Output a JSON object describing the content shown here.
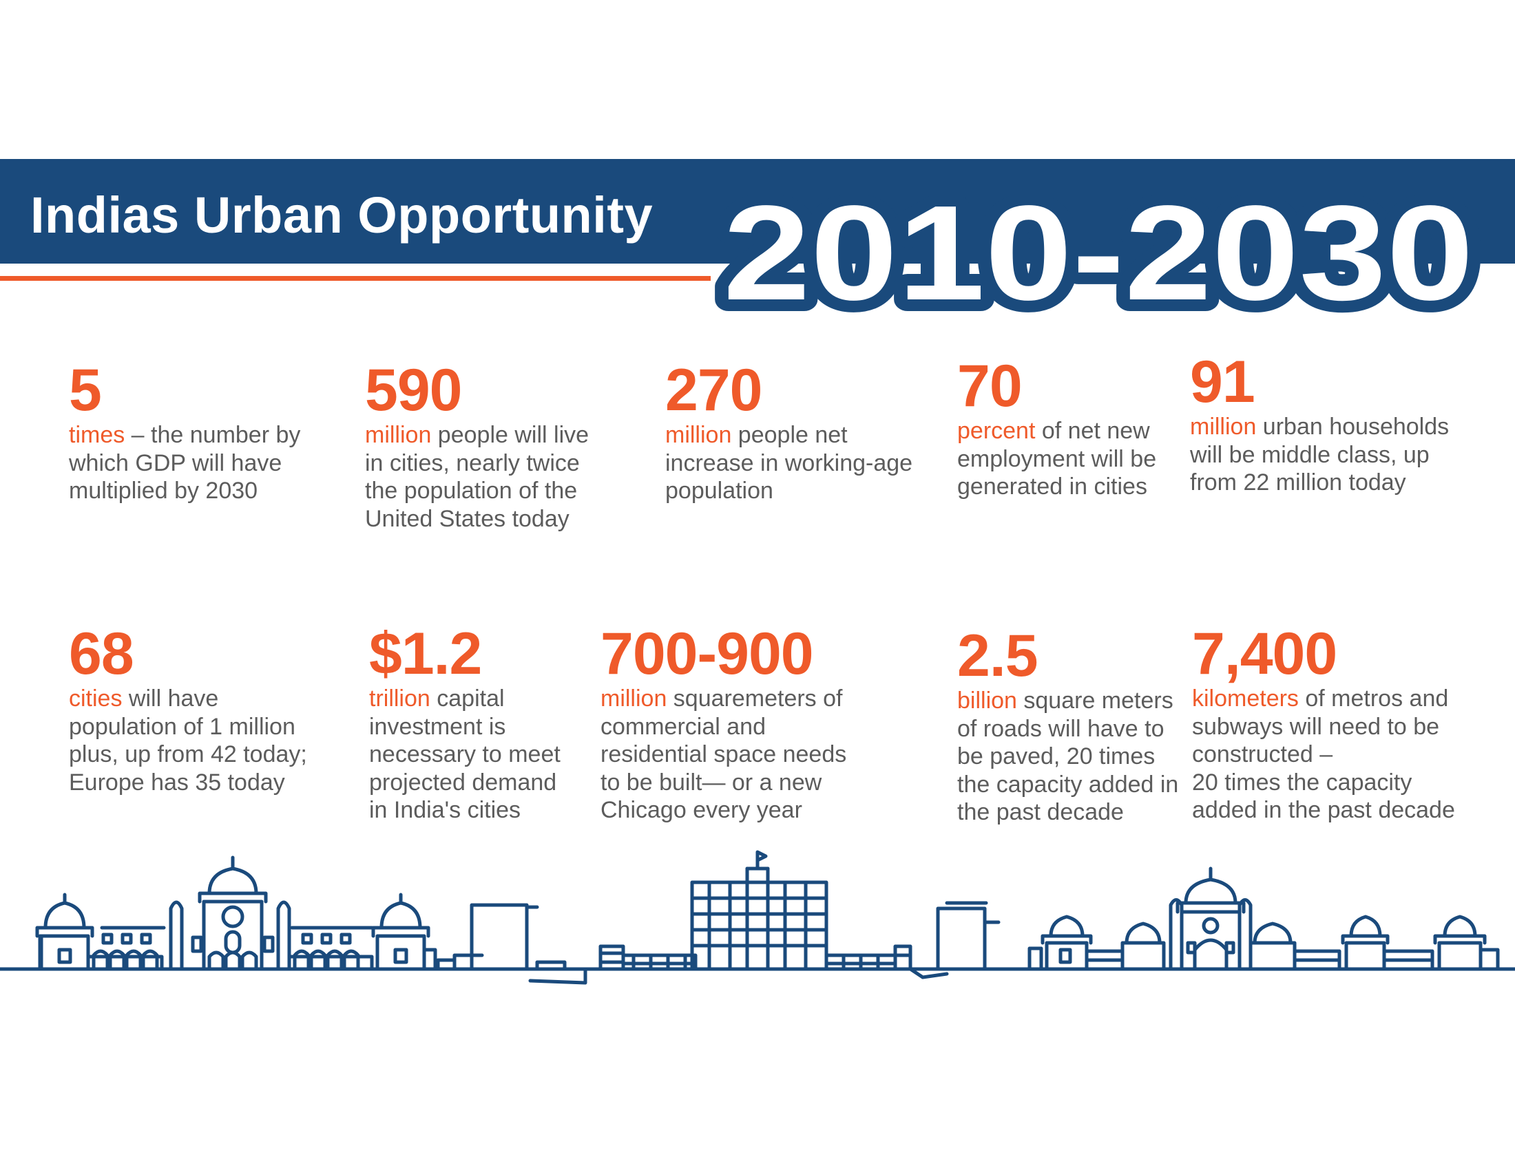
{
  "header": {
    "title": "Indias Urban Opportunity",
    "years": "2010-2030"
  },
  "stats": [
    {
      "value": "5",
      "unit": "times",
      "line1_rest": " – the number by",
      "more_lines": [
        "which GDP will have",
        "multiplied by 2030"
      ]
    },
    {
      "value": "590",
      "unit": "million",
      "line1_rest": " people will live",
      "more_lines": [
        "in cities, nearly twice",
        "the population of the",
        "United States today"
      ]
    },
    {
      "value": "270",
      "unit": "million",
      "line1_rest": " people net",
      "more_lines": [
        "increase in working-age",
        "population"
      ]
    },
    {
      "value": "70",
      "unit": "percent",
      "line1_rest": " of net new",
      "more_lines": [
        "employment will be",
        "generated in cities"
      ]
    },
    {
      "value": "91",
      "unit": "million",
      "line1_rest": " urban households",
      "more_lines": [
        "will be middle class, up",
        "from 22 million today"
      ]
    },
    {
      "value": "68",
      "unit": "cities",
      "line1_rest": " will have",
      "more_lines": [
        "population of 1 million",
        "plus, up from 42 today;",
        "Europe has 35 today"
      ]
    },
    {
      "value": "$1.2",
      "unit": "trillion",
      "line1_rest": " capital",
      "more_lines": [
        "investment is",
        "necessary to meet",
        "projected demand",
        "in India's cities"
      ]
    },
    {
      "value": "700-900",
      "unit": "million",
      "line1_rest": " squaremeters of",
      "more_lines": [
        "commercial and",
        "residential space needs",
        "to be built— or a new",
        "Chicago every year"
      ]
    },
    {
      "value": "2.5",
      "unit": "billion",
      "line1_rest": " square meters",
      "more_lines": [
        "of roads will have to",
        "be paved, 20 times",
        "the capacity added in",
        "the past decade"
      ]
    },
    {
      "value": "7,400",
      "unit": "kilometers",
      "line1_rest": " of metros and",
      "more_lines": [
        "subways will need to be",
        "constructed –",
        "20 times the capacity",
        "added in the past decade"
      ]
    }
  ],
  "colors": {
    "navy": "#1a4a7c",
    "orange": "#ef5a2a",
    "text_gray": "#5c5c5c"
  },
  "illustration": {
    "name": "city-skyline-icon"
  }
}
